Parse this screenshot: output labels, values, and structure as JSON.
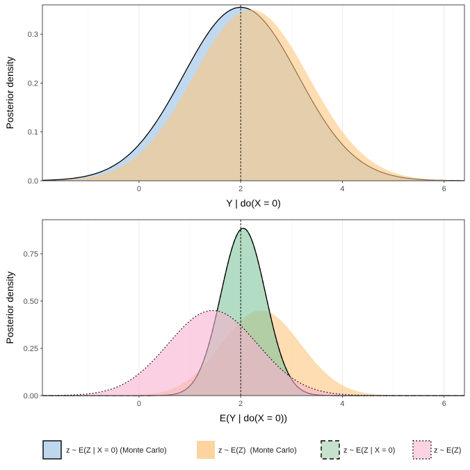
{
  "chart_data": [
    {
      "type": "area",
      "xlabel": "Y | do(X = 0)",
      "ylabel": "Posterior density",
      "xlim": [
        -1.9,
        6.4
      ],
      "ylim": [
        0,
        0.36
      ],
      "x_ticks": [
        0,
        2,
        4,
        6
      ],
      "y_ticks": [
        0.0,
        0.1,
        0.2,
        0.3
      ],
      "y_tick_labels": [
        "0.0",
        "0.1",
        "0.2",
        "0.3"
      ],
      "vline_x": 2,
      "grid": true,
      "series": [
        {
          "legend_key": "mc_cond",
          "fill": "#bdd7ee",
          "fill_opacity": 0.95,
          "line": "solid",
          "line_color": "#000000",
          "shape": "normal",
          "mean": 2.0,
          "sd": 1.13,
          "peak": 0.355
        },
        {
          "legend_key": "mc_marg",
          "fill": "#fdc77f",
          "fill_opacity": 0.6,
          "line": "none",
          "shape": "normal",
          "mean": 2.2,
          "sd": 1.14,
          "peak": 0.35
        }
      ]
    },
    {
      "type": "area",
      "xlabel": "E(Y | do(X = 0))",
      "ylabel": "Posterior density",
      "xlim": [
        -1.9,
        6.4
      ],
      "ylim": [
        0,
        0.93
      ],
      "x_ticks": [
        0,
        2,
        4,
        6
      ],
      "y_ticks": [
        0.0,
        0.25,
        0.5,
        0.75
      ],
      "y_tick_labels": [
        "0.00",
        "0.25",
        "0.50",
        "0.75"
      ],
      "vline_x": 2,
      "grid": true,
      "series": [
        {
          "legend_key": "mc_marg",
          "fill": "#fdc77f",
          "fill_opacity": 0.6,
          "line": "none",
          "shape": "normal",
          "mean": 2.4,
          "sd": 0.78,
          "peak": 0.45
        },
        {
          "legend_key": "cond",
          "fill": "#7fc49b",
          "fill_opacity": 0.6,
          "line": "dashed",
          "line_color": "#000000",
          "shape": "normal",
          "mean": 2.05,
          "sd": 0.44,
          "peak": 0.885
        },
        {
          "legend_key": "mc_cond",
          "fill": "none",
          "fill_opacity": 0,
          "line": "solid",
          "line_color": "#000000",
          "shape": "normal",
          "mean": 2.05,
          "sd": 0.44,
          "peak": 0.885
        },
        {
          "legend_key": "marg",
          "fill": "#f8b0d0",
          "fill_opacity": 0.6,
          "line": "dotted",
          "line_color": "#000000",
          "shape": "normal",
          "mean": 1.45,
          "sd": 0.88,
          "peak": 0.45
        }
      ]
    }
  ],
  "legend": {
    "position": "bottom",
    "items": [
      {
        "key": "mc_cond",
        "label": "z ~ E(Z | X = 0) (Monte Carlo)",
        "fill": "#bdd7ee",
        "border": "solid"
      },
      {
        "key": "mc_marg",
        "label": "z ~ E(Z)  (Monte Carlo)",
        "fill": "#fdd4a0",
        "border": "none"
      },
      {
        "key": "cond",
        "label": "z ~ E(Z | X = 0)",
        "fill": "#c6e2cc",
        "border": "dashed"
      },
      {
        "key": "marg",
        "label": "z ~ E(Z)",
        "fill": "#fbd3e3",
        "border": "dotted"
      }
    ]
  }
}
